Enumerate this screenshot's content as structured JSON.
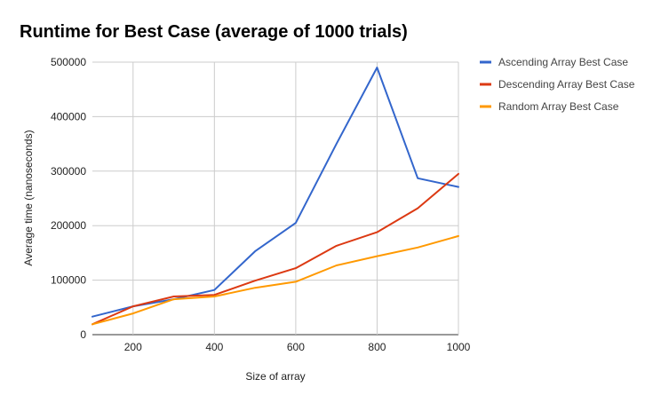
{
  "chart_data": {
    "type": "line",
    "title": "Runtime for Best Case (average of 1000 trials)",
    "xlabel": "Size of array",
    "ylabel": "Average time (nanoseconds)",
    "x": [
      100,
      200,
      300,
      400,
      500,
      600,
      700,
      800,
      900,
      1000
    ],
    "xlim": [
      100,
      1000
    ],
    "ylim": [
      0,
      500000
    ],
    "x_ticks": [
      "200",
      "400",
      "600",
      "800",
      "1000"
    ],
    "y_ticks": [
      "0",
      "100000",
      "200000",
      "300000",
      "400000",
      "500000"
    ],
    "grid": true,
    "legend_position": "right",
    "series": [
      {
        "name": "Ascending Array Best Case",
        "color": "#3366cc",
        "values": [
          33000,
          52000,
          65000,
          82000,
          153000,
          205000,
          350000,
          490000,
          287000,
          271000
        ]
      },
      {
        "name": "Descending Array Best Case",
        "color": "#dc3912",
        "values": [
          19000,
          52000,
          70000,
          73000,
          99000,
          122000,
          163000,
          188000,
          232000,
          295000
        ]
      },
      {
        "name": "Random Array Best Case",
        "color": "#ff9900",
        "values": [
          19000,
          39000,
          65000,
          70000,
          86000,
          97000,
          127000,
          144000,
          160000,
          181000
        ]
      }
    ]
  }
}
